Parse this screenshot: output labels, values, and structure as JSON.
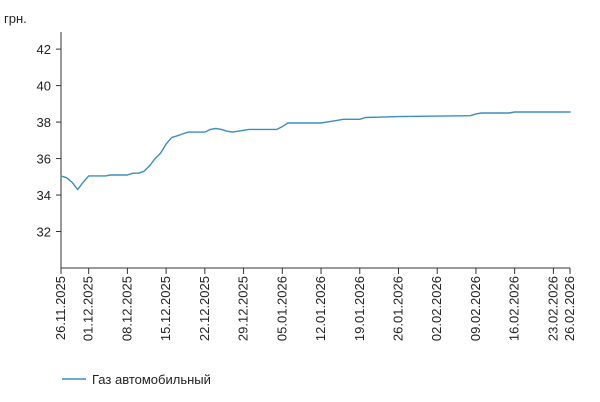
{
  "chart_data": {
    "type": "line",
    "ylabel": "грн.",
    "ylim": [
      30,
      42.5
    ],
    "yticks": [
      32,
      34,
      36,
      38,
      40,
      42
    ],
    "xlim": [
      "2025-11-26",
      "2026-02-26"
    ],
    "x_tick_labels": [
      "26.11.2025",
      "01.12.2025",
      "08.12.2025",
      "15.12.2025",
      "22.12.2025",
      "29.12.2025",
      "05.01.2026",
      "12.01.2026",
      "19.01.2026",
      "26.01.2026",
      "02.02.2026",
      "09.02.2026",
      "16.02.2026",
      "23.02.2026",
      "26.02.2026"
    ],
    "x_tick_dates": [
      "2025-11-26",
      "2025-12-01",
      "2025-12-08",
      "2025-12-15",
      "2025-12-22",
      "2025-12-29",
      "2026-01-05",
      "2026-01-12",
      "2026-01-19",
      "2026-01-26",
      "2026-02-02",
      "2026-02-09",
      "2026-02-16",
      "2026-02-23",
      "2026-02-26"
    ],
    "grid": false,
    "legend_position": "bottom-left",
    "series": [
      {
        "name": "Газ автомобильный",
        "color": "#3a8fc0",
        "points": [
          [
            "2025-11-26",
            35.05
          ],
          [
            "2025-11-27",
            34.95
          ],
          [
            "2025-11-28",
            34.7
          ],
          [
            "2025-11-29",
            34.3
          ],
          [
            "2025-11-30",
            34.7
          ],
          [
            "2025-12-01",
            35.05
          ],
          [
            "2025-12-02",
            35.05
          ],
          [
            "2025-12-03",
            35.05
          ],
          [
            "2025-12-04",
            35.05
          ],
          [
            "2025-12-05",
            35.1
          ],
          [
            "2025-12-08",
            35.1
          ],
          [
            "2025-12-09",
            35.2
          ],
          [
            "2025-12-10",
            35.2
          ],
          [
            "2025-12-11",
            35.3
          ],
          [
            "2025-12-12",
            35.6
          ],
          [
            "2025-12-13",
            36.0
          ],
          [
            "2025-12-14",
            36.3
          ],
          [
            "2025-12-15",
            36.8
          ],
          [
            "2025-12-16",
            37.15
          ],
          [
            "2025-12-17",
            37.25
          ],
          [
            "2025-12-18",
            37.35
          ],
          [
            "2025-12-19",
            37.45
          ],
          [
            "2025-12-22",
            37.45
          ],
          [
            "2025-12-23",
            37.6
          ],
          [
            "2025-12-24",
            37.65
          ],
          [
            "2025-12-25",
            37.6
          ],
          [
            "2025-12-26",
            37.5
          ],
          [
            "2025-12-27",
            37.45
          ],
          [
            "2025-12-28",
            37.5
          ],
          [
            "2025-12-29",
            37.55
          ],
          [
            "2025-12-30",
            37.6
          ],
          [
            "2026-01-04",
            37.6
          ],
          [
            "2026-01-05",
            37.75
          ],
          [
            "2026-01-06",
            37.95
          ],
          [
            "2026-01-12",
            37.95
          ],
          [
            "2026-01-13",
            38.0
          ],
          [
            "2026-01-15",
            38.1
          ],
          [
            "2026-01-16",
            38.15
          ],
          [
            "2026-01-19",
            38.15
          ],
          [
            "2026-01-20",
            38.25
          ],
          [
            "2026-01-26",
            38.3
          ],
          [
            "2026-02-08",
            38.35
          ],
          [
            "2026-02-09",
            38.45
          ],
          [
            "2026-02-10",
            38.5
          ],
          [
            "2026-02-15",
            38.5
          ],
          [
            "2026-02-16",
            38.55
          ],
          [
            "2026-02-26",
            38.55
          ]
        ]
      }
    ]
  }
}
